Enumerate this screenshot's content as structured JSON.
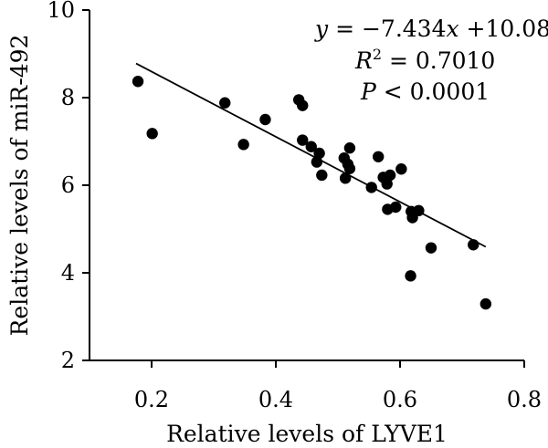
{
  "chart_data": {
    "type": "scatter",
    "xlabel": "Relative levels of LYVE1",
    "ylabel": "Relative levels of miR-492",
    "xlim": [
      0.1,
      0.8
    ],
    "ylim": [
      2,
      10
    ],
    "xticks": [
      "0.2",
      "0.4",
      "0.6",
      "0.8"
    ],
    "yticks": [
      "2",
      "4",
      "6",
      "8",
      "10"
    ],
    "grid": false,
    "points": [
      {
        "x": 0.178,
        "y": 8.37
      },
      {
        "x": 0.201,
        "y": 7.18
      },
      {
        "x": 0.318,
        "y": 7.88
      },
      {
        "x": 0.348,
        "y": 6.93
      },
      {
        "x": 0.383,
        "y": 7.5
      },
      {
        "x": 0.437,
        "y": 7.95
      },
      {
        "x": 0.443,
        "y": 7.82
      },
      {
        "x": 0.443,
        "y": 7.03
      },
      {
        "x": 0.457,
        "y": 6.88
      },
      {
        "x": 0.466,
        "y": 6.53
      },
      {
        "x": 0.47,
        "y": 6.73
      },
      {
        "x": 0.474,
        "y": 6.23
      },
      {
        "x": 0.51,
        "y": 6.62
      },
      {
        "x": 0.512,
        "y": 6.16
      },
      {
        "x": 0.516,
        "y": 6.48
      },
      {
        "x": 0.519,
        "y": 6.85
      },
      {
        "x": 0.519,
        "y": 6.38
      },
      {
        "x": 0.554,
        "y": 5.95
      },
      {
        "x": 0.565,
        "y": 6.65
      },
      {
        "x": 0.573,
        "y": 6.18
      },
      {
        "x": 0.579,
        "y": 6.03
      },
      {
        "x": 0.584,
        "y": 6.23
      },
      {
        "x": 0.58,
        "y": 5.45
      },
      {
        "x": 0.593,
        "y": 5.5
      },
      {
        "x": 0.602,
        "y": 6.37
      },
      {
        "x": 0.618,
        "y": 5.4
      },
      {
        "x": 0.62,
        "y": 5.26
      },
      {
        "x": 0.63,
        "y": 5.42
      },
      {
        "x": 0.617,
        "y": 3.93
      },
      {
        "x": 0.65,
        "y": 4.57
      },
      {
        "x": 0.718,
        "y": 4.64
      },
      {
        "x": 0.738,
        "y": 3.29
      }
    ],
    "regression": {
      "slope": -7.434,
      "intercept": 10.08,
      "x_range": [
        0.175,
        0.738
      ]
    },
    "annotation": {
      "eq_y": "y",
      "eq_rest": " = −7.434",
      "eq_x": "x",
      "eq_tail": " +10.08",
      "r2_r": "R",
      "r2_sup": "2",
      "r2_val": " = 0.7010",
      "p_p": "P",
      "p_val": " < 0.0001"
    }
  }
}
